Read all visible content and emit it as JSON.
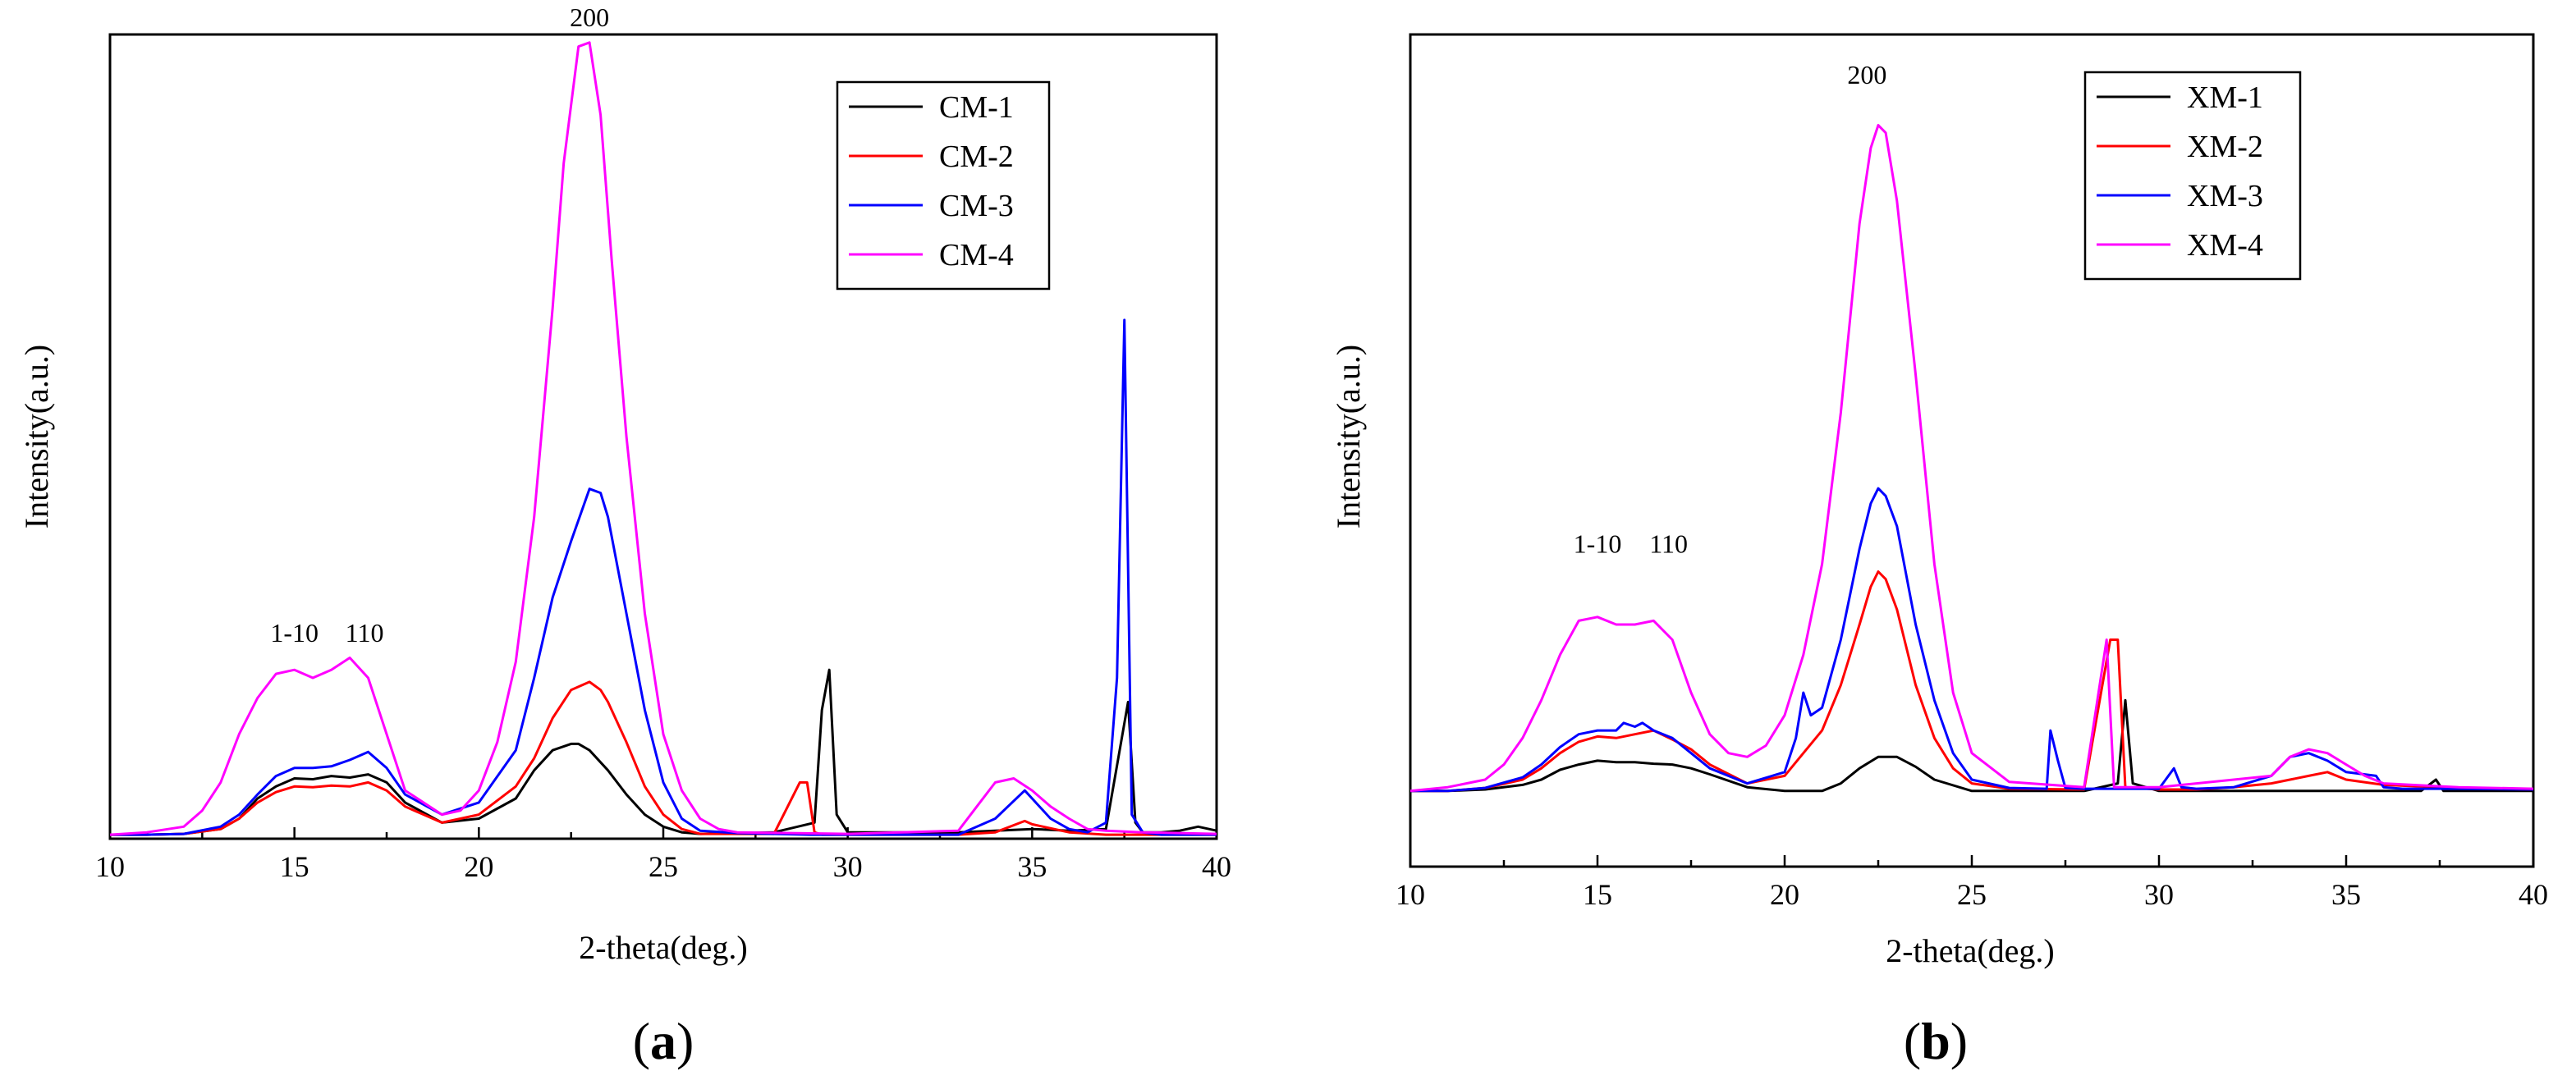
{
  "chart_data": [
    {
      "panel_label": "a",
      "type": "line",
      "xlabel": "2-theta(deg.)",
      "ylabel": "Intensity(a.u.)",
      "xlim": [
        10,
        40
      ],
      "ylim": [
        0,
        1.0
      ],
      "xticks": [
        "10",
        "15",
        "20",
        "25",
        "30",
        "35",
        "40"
      ],
      "legend_position": "top-right",
      "annotations": [
        {
          "text": "200",
          "x": 23.0,
          "y": 1.01
        },
        {
          "text": "1-10",
          "x": 15.0,
          "y": 0.245
        },
        {
          "text": "110",
          "x": 16.9,
          "y": 0.245
        }
      ],
      "series": [
        {
          "name": "CM-1",
          "color": "#000000",
          "x": [
            10,
            11,
            12,
            13,
            13.5,
            14,
            14.5,
            15,
            15.5,
            16,
            16.5,
            17,
            17.5,
            18,
            19,
            20,
            21,
            21.5,
            22,
            22.5,
            22.7,
            23,
            23.5,
            24,
            24.5,
            25,
            25.5,
            26,
            28,
            29.1,
            29.3,
            29.5,
            29.7,
            30,
            33,
            34,
            35,
            36,
            37,
            37.6,
            37.8,
            38,
            38.5,
            39,
            39.5,
            40
          ],
          "y": [
            0.005,
            0.005,
            0.006,
            0.012,
            0.025,
            0.05,
            0.065,
            0.075,
            0.074,
            0.078,
            0.076,
            0.08,
            0.07,
            0.045,
            0.02,
            0.025,
            0.05,
            0.085,
            0.11,
            0.118,
            0.118,
            0.11,
            0.085,
            0.055,
            0.03,
            0.015,
            0.008,
            0.006,
            0.008,
            0.02,
            0.16,
            0.21,
            0.03,
            0.008,
            0.008,
            0.01,
            0.012,
            0.01,
            0.012,
            0.17,
            0.02,
            0.008,
            0.008,
            0.01,
            0.015,
            0.01
          ]
        },
        {
          "name": "CM-2",
          "color": "#ff0000",
          "x": [
            10,
            11,
            12,
            13,
            13.5,
            14,
            14.5,
            15,
            15.5,
            16,
            16.5,
            17,
            17.5,
            18,
            19,
            20,
            21,
            21.5,
            22,
            22.5,
            23,
            23.3,
            23.5,
            24,
            24.5,
            25,
            25.5,
            26,
            28,
            28.7,
            28.9,
            29.1,
            29.3,
            30,
            33,
            34,
            34.8,
            35,
            36,
            37,
            38,
            39,
            40
          ],
          "y": [
            0.005,
            0.005,
            0.006,
            0.012,
            0.025,
            0.045,
            0.058,
            0.065,
            0.064,
            0.066,
            0.065,
            0.07,
            0.06,
            0.04,
            0.02,
            0.03,
            0.065,
            0.1,
            0.15,
            0.185,
            0.195,
            0.185,
            0.17,
            0.12,
            0.065,
            0.03,
            0.012,
            0.006,
            0.006,
            0.07,
            0.07,
            0.008,
            0.005,
            0.005,
            0.005,
            0.008,
            0.022,
            0.018,
            0.008,
            0.005,
            0.005,
            0.005,
            0.005
          ]
        },
        {
          "name": "CM-3",
          "color": "#0000ff",
          "x": [
            10,
            11,
            12,
            13,
            13.5,
            14,
            14.5,
            15,
            15.5,
            16,
            16.5,
            17,
            17.5,
            18,
            19,
            20,
            21,
            21.5,
            22,
            22.5,
            23,
            23.3,
            23.5,
            24,
            24.5,
            25,
            25.5,
            26,
            27,
            29,
            31,
            33,
            34,
            34.8,
            35,
            35.5,
            36,
            36.5,
            37,
            37.3,
            37.5,
            37.7,
            38,
            38.5,
            40
          ],
          "y": [
            0.005,
            0.005,
            0.006,
            0.015,
            0.03,
            0.055,
            0.078,
            0.088,
            0.088,
            0.09,
            0.098,
            0.108,
            0.088,
            0.055,
            0.03,
            0.045,
            0.11,
            0.2,
            0.3,
            0.37,
            0.435,
            0.43,
            0.4,
            0.28,
            0.16,
            0.07,
            0.025,
            0.01,
            0.007,
            0.005,
            0.005,
            0.005,
            0.025,
            0.06,
            0.05,
            0.025,
            0.012,
            0.008,
            0.02,
            0.2,
            0.645,
            0.03,
            0.008,
            0.005,
            0.005
          ]
        },
        {
          "name": "CM-4",
          "color": "#ff00ff",
          "x": [
            10,
            11,
            12,
            12.5,
            13,
            13.5,
            14,
            14.5,
            15,
            15.5,
            16,
            16.5,
            17,
            17.5,
            18,
            19,
            19.5,
            20,
            20.5,
            21,
            21.5,
            22,
            22.3,
            22.7,
            23,
            23.3,
            23.6,
            24,
            24.5,
            25,
            25.5,
            26,
            26.5,
            27,
            30,
            33,
            33.5,
            34,
            34.5,
            35,
            35.5,
            36,
            36.5,
            37,
            38,
            40
          ],
          "y": [
            0.005,
            0.008,
            0.015,
            0.035,
            0.07,
            0.13,
            0.175,
            0.205,
            0.21,
            0.2,
            0.21,
            0.225,
            0.2,
            0.13,
            0.06,
            0.03,
            0.035,
            0.06,
            0.12,
            0.22,
            0.4,
            0.66,
            0.84,
            0.985,
            0.99,
            0.9,
            0.72,
            0.5,
            0.28,
            0.13,
            0.06,
            0.025,
            0.012,
            0.008,
            0.006,
            0.01,
            0.04,
            0.07,
            0.075,
            0.06,
            0.04,
            0.025,
            0.012,
            0.01,
            0.008,
            0.006
          ]
        }
      ]
    },
    {
      "panel_label": "b",
      "type": "line",
      "xlabel": "2-theta(deg.)",
      "ylabel": "Intensity(a.u.)",
      "xlim": [
        10,
        40
      ],
      "ylim": [
        -0.1,
        1.0
      ],
      "xticks": [
        "10",
        "15",
        "20",
        "25",
        "30",
        "35",
        "40"
      ],
      "legend_position": "top-right",
      "annotations": [
        {
          "text": "200",
          "x": 22.2,
          "y": 0.935
        },
        {
          "text": "1-10",
          "x": 15.0,
          "y": 0.315
        },
        {
          "text": "110",
          "x": 16.9,
          "y": 0.315
        }
      ],
      "series": [
        {
          "name": "XM-1",
          "color": "#000000",
          "x": [
            10,
            11,
            12,
            13,
            13.5,
            14,
            14.5,
            15,
            15.5,
            16,
            16.5,
            17,
            17.5,
            18,
            19,
            20,
            21,
            21.5,
            22,
            22.5,
            23,
            23.5,
            24,
            25,
            26,
            28,
            28.9,
            29.1,
            29.3,
            30,
            33,
            37,
            37.4,
            37.6,
            38,
            40
          ],
          "y": [
            0,
            0,
            0.002,
            0.008,
            0.015,
            0.028,
            0.035,
            0.04,
            0.038,
            0.038,
            0.036,
            0.035,
            0.03,
            0.022,
            0.005,
            0,
            0,
            0.01,
            0.03,
            0.045,
            0.045,
            0.032,
            0.015,
            0,
            0,
            0,
            0.01,
            0.12,
            0.01,
            0,
            0,
            0,
            0.015,
            0,
            0,
            0
          ]
        },
        {
          "name": "XM-2",
          "color": "#ff0000",
          "x": [
            10,
            11,
            12,
            13,
            13.5,
            14,
            14.5,
            15,
            15.5,
            16,
            16.5,
            17,
            17.5,
            18,
            19,
            20,
            20.5,
            21,
            21.5,
            22,
            22.3,
            22.5,
            22.7,
            23,
            23.5,
            24,
            24.5,
            25,
            26,
            28,
            28.7,
            28.9,
            29.1,
            30,
            31,
            32,
            33,
            33.5,
            34,
            34.5,
            35,
            36,
            38,
            40
          ],
          "y": [
            0,
            0,
            0.004,
            0.015,
            0.03,
            0.05,
            0.065,
            0.072,
            0.07,
            0.075,
            0.08,
            0.068,
            0.055,
            0.035,
            0.01,
            0.02,
            0.05,
            0.08,
            0.14,
            0.22,
            0.27,
            0.29,
            0.28,
            0.24,
            0.14,
            0.07,
            0.03,
            0.01,
            0.003,
            0.002,
            0.2,
            0.2,
            0.005,
            0.002,
            0.002,
            0.005,
            0.01,
            0.015,
            0.02,
            0.025,
            0.015,
            0.008,
            0.004,
            0.002
          ]
        },
        {
          "name": "XM-3",
          "color": "#0000ff",
          "x": [
            10,
            11,
            12,
            13,
            13.5,
            14,
            14.5,
            15,
            15.5,
            15.7,
            16,
            16.2,
            16.5,
            17,
            17.5,
            18,
            19,
            20,
            20.3,
            20.5,
            20.7,
            21,
            21.5,
            22,
            22.3,
            22.5,
            22.7,
            23,
            23.5,
            24,
            24.5,
            25,
            26,
            27,
            27.1,
            27.3,
            27.5,
            28,
            30,
            30.4,
            30.6,
            31,
            32,
            33,
            33.5,
            34,
            34.5,
            35,
            35.8,
            36,
            36.5,
            38,
            40
          ],
          "y": [
            0,
            0,
            0.004,
            0.018,
            0.035,
            0.058,
            0.075,
            0.08,
            0.08,
            0.09,
            0.085,
            0.09,
            0.08,
            0.07,
            0.05,
            0.03,
            0.01,
            0.025,
            0.07,
            0.13,
            0.1,
            0.11,
            0.2,
            0.32,
            0.38,
            0.4,
            0.39,
            0.35,
            0.22,
            0.12,
            0.05,
            0.015,
            0.004,
            0.003,
            0.08,
            0.04,
            0.004,
            0.003,
            0.003,
            0.03,
            0.005,
            0.003,
            0.005,
            0.02,
            0.045,
            0.05,
            0.04,
            0.025,
            0.02,
            0.005,
            0.003,
            0.003,
            0.002
          ]
        },
        {
          "name": "XM-4",
          "color": "#ff00ff",
          "x": [
            10,
            11,
            12,
            12.5,
            13,
            13.5,
            14,
            14.5,
            15,
            15.5,
            16,
            16.5,
            17,
            17.5,
            18,
            18.5,
            19,
            19.5,
            20,
            20.5,
            21,
            21.5,
            22,
            22.3,
            22.5,
            22.7,
            23,
            23.5,
            24,
            24.5,
            25,
            26,
            28,
            28.6,
            28.8,
            29,
            30,
            33,
            33.5,
            34,
            34.5,
            35,
            35.5,
            36,
            38,
            40
          ],
          "y": [
            0,
            0.005,
            0.015,
            0.035,
            0.07,
            0.12,
            0.18,
            0.225,
            0.23,
            0.22,
            0.22,
            0.225,
            0.2,
            0.13,
            0.075,
            0.05,
            0.045,
            0.06,
            0.1,
            0.18,
            0.3,
            0.5,
            0.75,
            0.85,
            0.88,
            0.87,
            0.78,
            0.55,
            0.3,
            0.13,
            0.05,
            0.012,
            0.005,
            0.2,
            0.005,
            0.005,
            0.005,
            0.02,
            0.045,
            0.055,
            0.05,
            0.035,
            0.02,
            0.01,
            0.005,
            0.003
          ]
        }
      ]
    }
  ]
}
